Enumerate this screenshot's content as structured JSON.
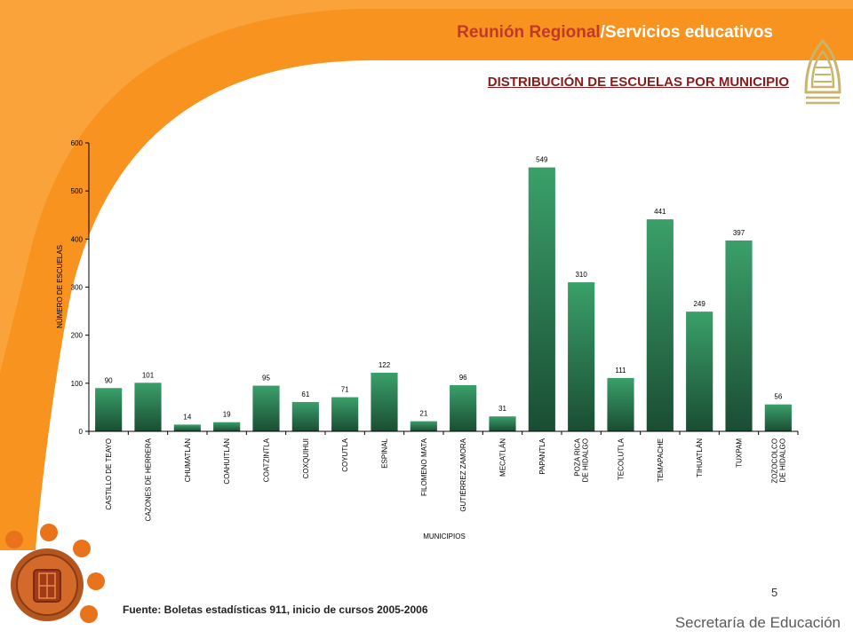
{
  "header": {
    "title_part1": "Reunión Regional",
    "title_sep": "/",
    "title_part2": "Servicios educativos"
  },
  "subtitle": "DISTRIBUCIÓN DE ESCUELAS POR MUNICIPIO",
  "footer": {
    "source": "Fuente: Boletas estadísticas 911, inicio de cursos 2005-2006",
    "page_number": "5",
    "brand": "Secretaría de Educación"
  },
  "colors": {
    "orange_accent": "#f7931e",
    "bar_top": "#3aa06a",
    "bar_bottom": "#1a4d33",
    "title_red": "#c0392b"
  },
  "chart_data": {
    "type": "bar",
    "ylabel": "NÚMERO DE ESCUELAS",
    "xlabel": "MUNICIPIOS",
    "ylim": [
      0,
      600
    ],
    "yticks": [
      0,
      100,
      200,
      300,
      400,
      500,
      600
    ],
    "categories": [
      "CASTILLO DE TEAYO",
      "CAZONES DE HERRERA",
      "CHUMATLÁN",
      "COAHUITLÁN",
      "COATZINTLA",
      "COXQUIHUI",
      "COYUTLA",
      "ESPINAL",
      "FILOMENO MATA",
      "GUTIÉRREZ ZAMORA",
      "MECATLÁN",
      "PAPANTLA",
      "POZA RICA DE HIDALGO",
      "TECOLUTLA",
      "TEMAPACHE",
      "TIHUATLÁN",
      "TUXPAM",
      "ZOZOCOLCO DE HIDALGO"
    ],
    "values": [
      90,
      101,
      14,
      19,
      95,
      61,
      71,
      122,
      21,
      96,
      31,
      549,
      310,
      111,
      441,
      249,
      397,
      56
    ],
    "grid": false,
    "legend": "none"
  }
}
